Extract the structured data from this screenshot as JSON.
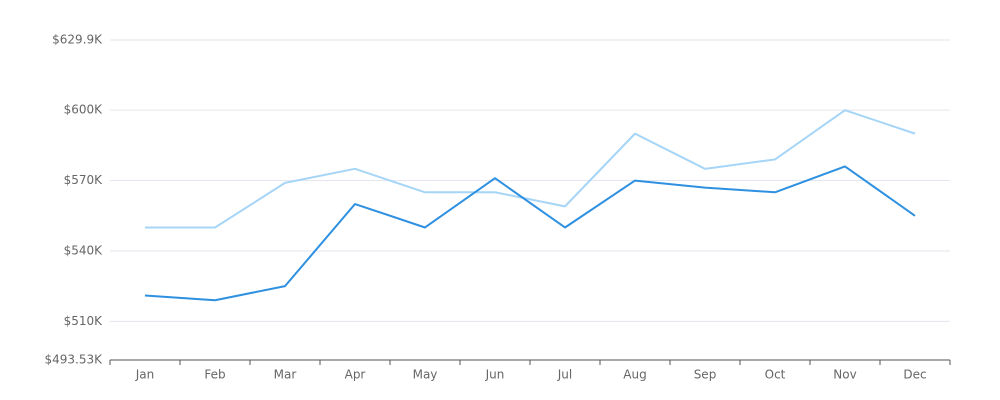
{
  "chart_data": {
    "type": "line",
    "categories": [
      "Jan",
      "Feb",
      "Mar",
      "Apr",
      "May",
      "Jun",
      "Jul",
      "Aug",
      "Sep",
      "Oct",
      "Nov",
      "Dec"
    ],
    "series": [
      {
        "color": "#a6d5f7",
        "values": [
          550,
          550,
          569,
          575,
          565,
          565,
          559,
          590,
          575,
          579,
          600,
          590
        ]
      },
      {
        "color": "#2e90e0",
        "values": [
          521,
          519,
          525,
          560,
          550,
          571,
          550,
          570,
          567,
          565,
          576,
          555
        ]
      }
    ],
    "ylim": [
      493.53,
      629.9
    ],
    "yticks": [
      {
        "value": 493.53,
        "label": "$493.53K"
      },
      {
        "value": 510,
        "label": "$510K"
      },
      {
        "value": 540,
        "label": "$540K"
      },
      {
        "value": 570,
        "label": "$570K"
      },
      {
        "value": 600,
        "label": "$600K"
      },
      {
        "value": 629.9,
        "label": "$629.9K"
      }
    ],
    "grid": true
  }
}
